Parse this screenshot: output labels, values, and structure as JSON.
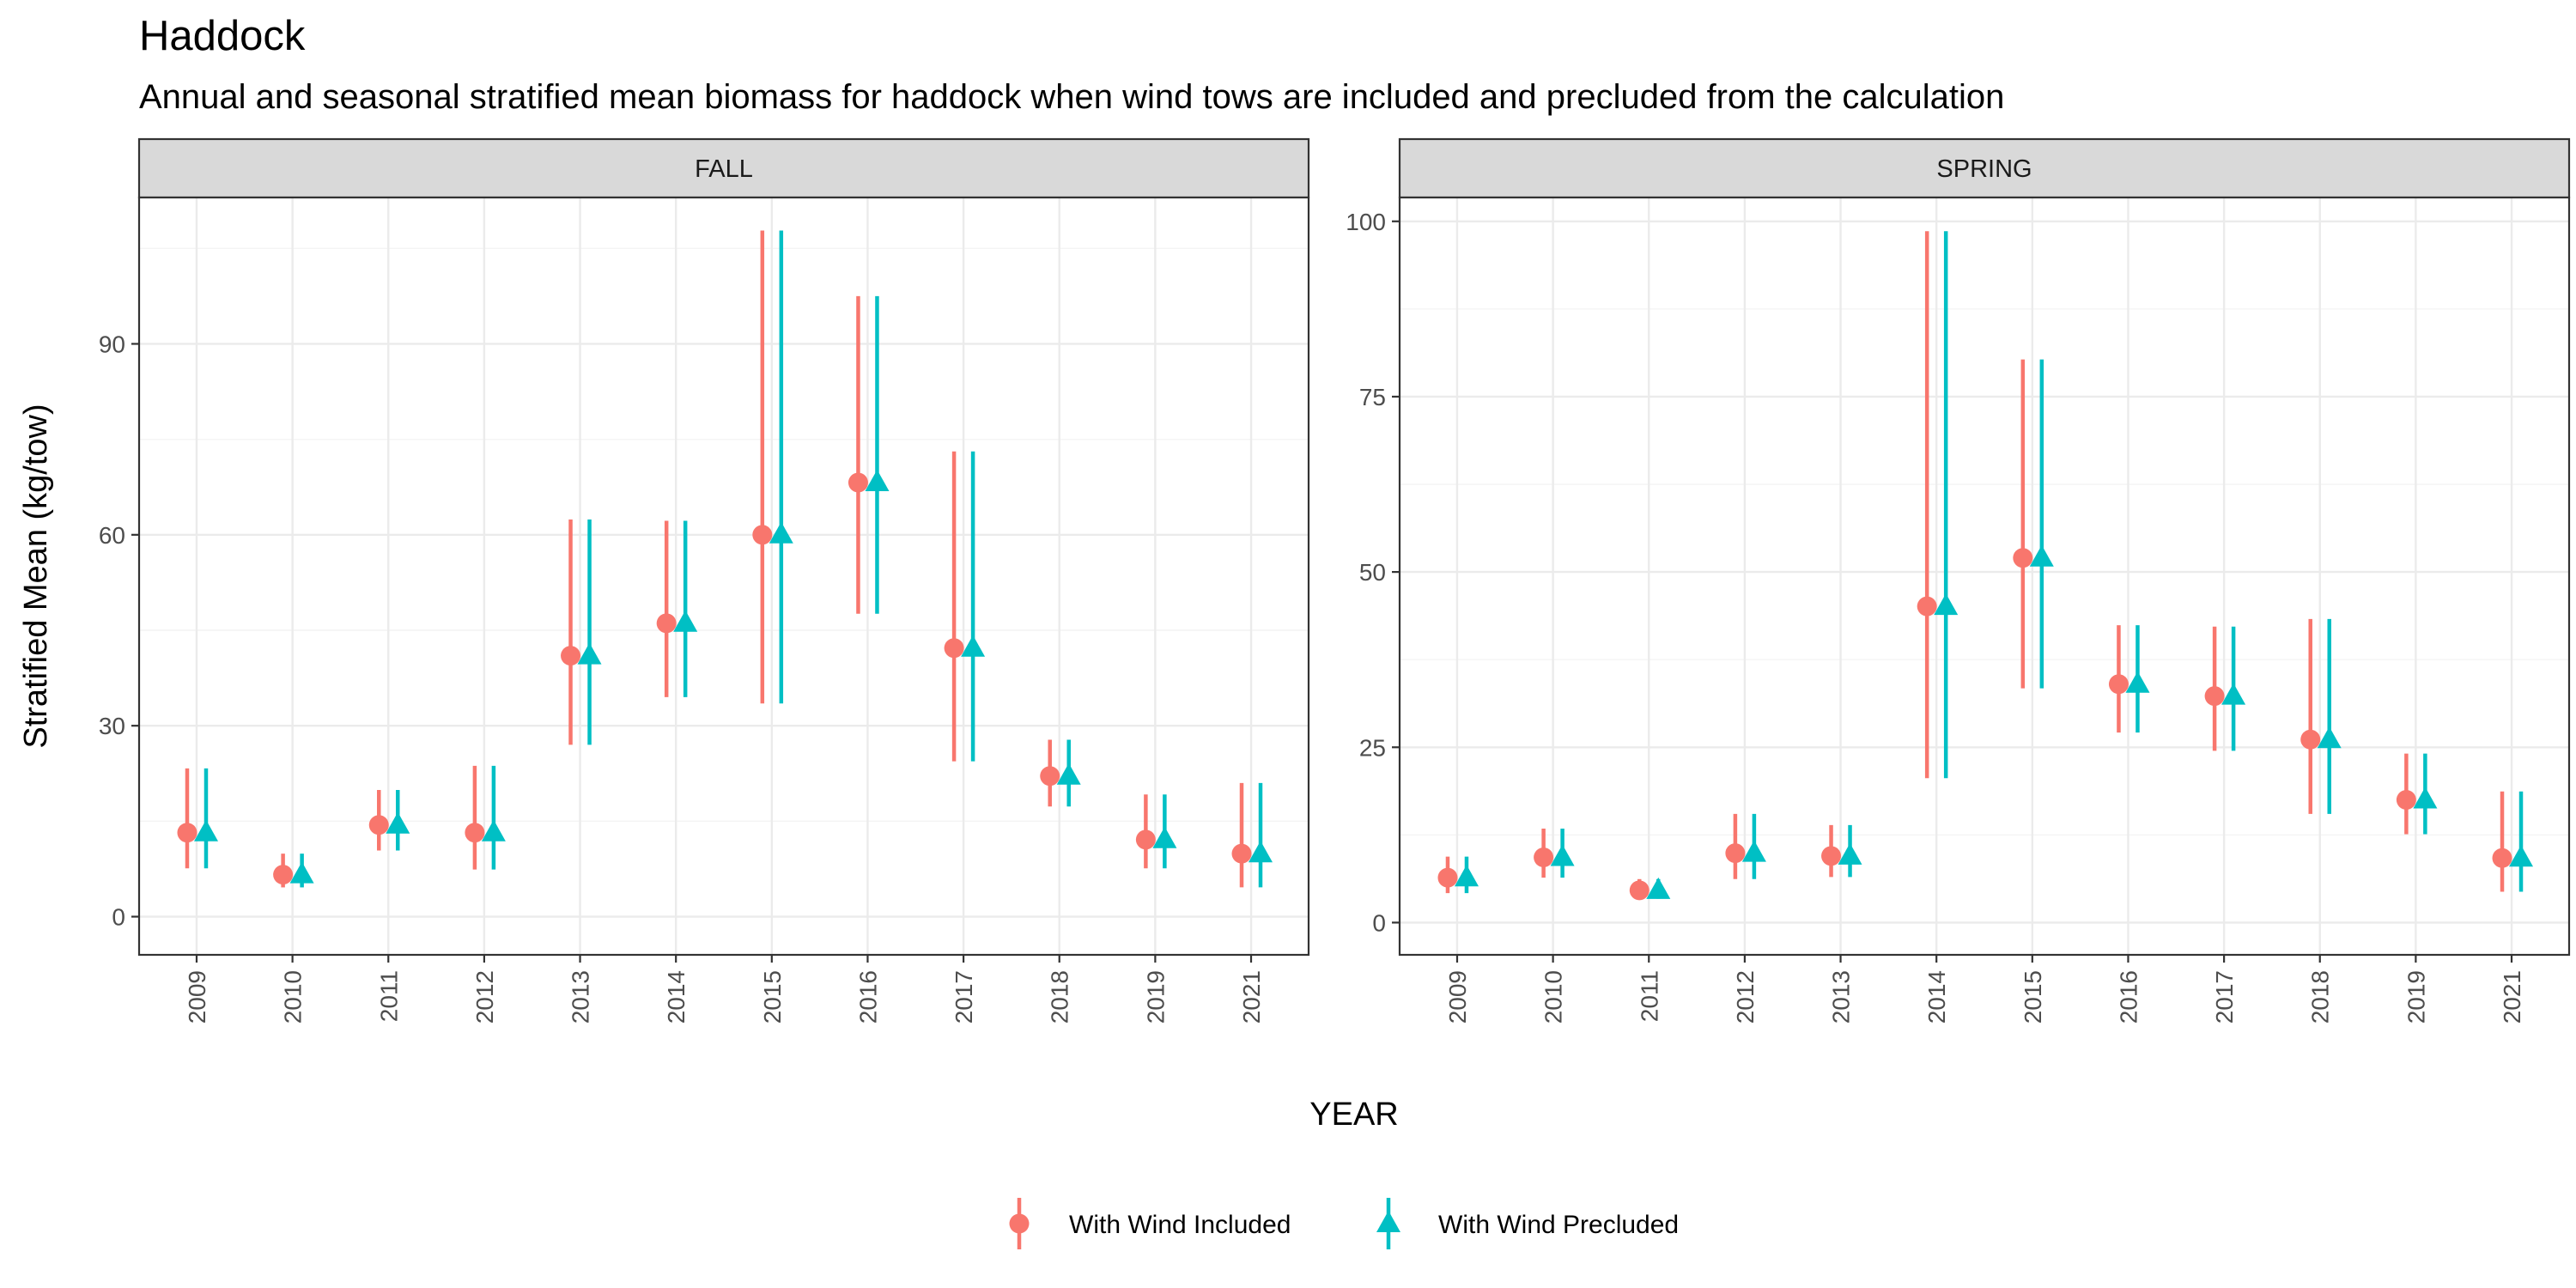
{
  "title": "Haddock",
  "subtitle": "Annual and seasonal stratified mean biomass for haddock when wind tows are included and precluded from the calculation",
  "chart_data": [
    {
      "type": "scatter",
      "panel": "FALL",
      "xlabel": "YEAR",
      "ylabel": "Stratified Mean (kg/tow)",
      "categories": [
        "2009",
        "2010",
        "2011",
        "2012",
        "2013",
        "2014",
        "2015",
        "2016",
        "2017",
        "2018",
        "2019",
        "2021"
      ],
      "ylim": [
        -6,
        113
      ],
      "yticks": [
        0,
        30,
        60,
        90
      ],
      "series": [
        {
          "name": "With Wind Included",
          "color": "#F8766D",
          "marker": "circle",
          "values": [
            13.2,
            6.6,
            14.4,
            13.2,
            41.0,
            46.1,
            60.0,
            68.2,
            42.2,
            22.1,
            12.1,
            9.9
          ],
          "lower": [
            7.6,
            4.6,
            10.4,
            7.4,
            27.0,
            34.5,
            33.5,
            47.6,
            24.4,
            17.3,
            7.6,
            4.6
          ],
          "upper": [
            23.3,
            9.9,
            19.9,
            23.7,
            62.4,
            62.2,
            107.8,
            97.5,
            73.1,
            27.8,
            19.2,
            21.0
          ]
        },
        {
          "name": "With Wind Precluded",
          "color": "#00BFC4",
          "marker": "triangle",
          "values": [
            13.2,
            6.6,
            14.4,
            13.2,
            41.0,
            46.1,
            60.0,
            68.2,
            42.2,
            22.1,
            12.1,
            9.9
          ],
          "lower": [
            7.6,
            4.6,
            10.4,
            7.4,
            27.0,
            34.5,
            33.5,
            47.6,
            24.4,
            17.3,
            7.6,
            4.6
          ],
          "upper": [
            23.3,
            9.9,
            19.9,
            23.7,
            62.4,
            62.2,
            107.8,
            97.5,
            73.1,
            27.8,
            19.2,
            21.0
          ]
        }
      ]
    },
    {
      "type": "scatter",
      "panel": "SPRING",
      "xlabel": "YEAR",
      "ylabel": "Stratified Mean (kg/tow)",
      "categories": [
        "2009",
        "2010",
        "2011",
        "2012",
        "2013",
        "2014",
        "2015",
        "2016",
        "2017",
        "2018",
        "2019",
        "2021"
      ],
      "ylim": [
        -4.6,
        103.4
      ],
      "yticks": [
        0,
        25,
        50,
        75,
        100
      ],
      "series": [
        {
          "name": "With Wind Included",
          "color": "#F8766D",
          "marker": "circle",
          "values": [
            6.4,
            9.3,
            4.6,
            9.9,
            9.5,
            45.1,
            52.0,
            34.0,
            32.3,
            26.1,
            17.5,
            9.2
          ],
          "lower": [
            4.2,
            6.4,
            3.4,
            6.2,
            6.5,
            20.6,
            33.4,
            27.1,
            24.5,
            15.5,
            12.6,
            4.4
          ],
          "upper": [
            9.4,
            13.4,
            6.2,
            15.5,
            13.9,
            98.6,
            80.3,
            42.4,
            42.2,
            43.3,
            24.1,
            18.7
          ]
        },
        {
          "name": "With Wind Precluded",
          "color": "#00BFC4",
          "marker": "triangle",
          "values": [
            6.4,
            9.3,
            4.6,
            9.9,
            9.5,
            45.1,
            52.0,
            34.0,
            32.3,
            26.1,
            17.5,
            9.2
          ],
          "lower": [
            4.2,
            6.4,
            3.4,
            6.2,
            6.5,
            20.6,
            33.4,
            27.1,
            24.5,
            15.5,
            12.6,
            4.4
          ],
          "upper": [
            9.4,
            13.4,
            6.2,
            15.5,
            13.9,
            98.6,
            80.3,
            42.4,
            42.2,
            43.3,
            24.1,
            18.7
          ]
        }
      ]
    }
  ],
  "legend": {
    "position": "bottom",
    "items": [
      {
        "label": "With Wind Included",
        "color": "#F8766D",
        "marker": "circle"
      },
      {
        "label": "With Wind Precluded",
        "color": "#00BFC4",
        "marker": "triangle"
      }
    ]
  },
  "grid": true
}
